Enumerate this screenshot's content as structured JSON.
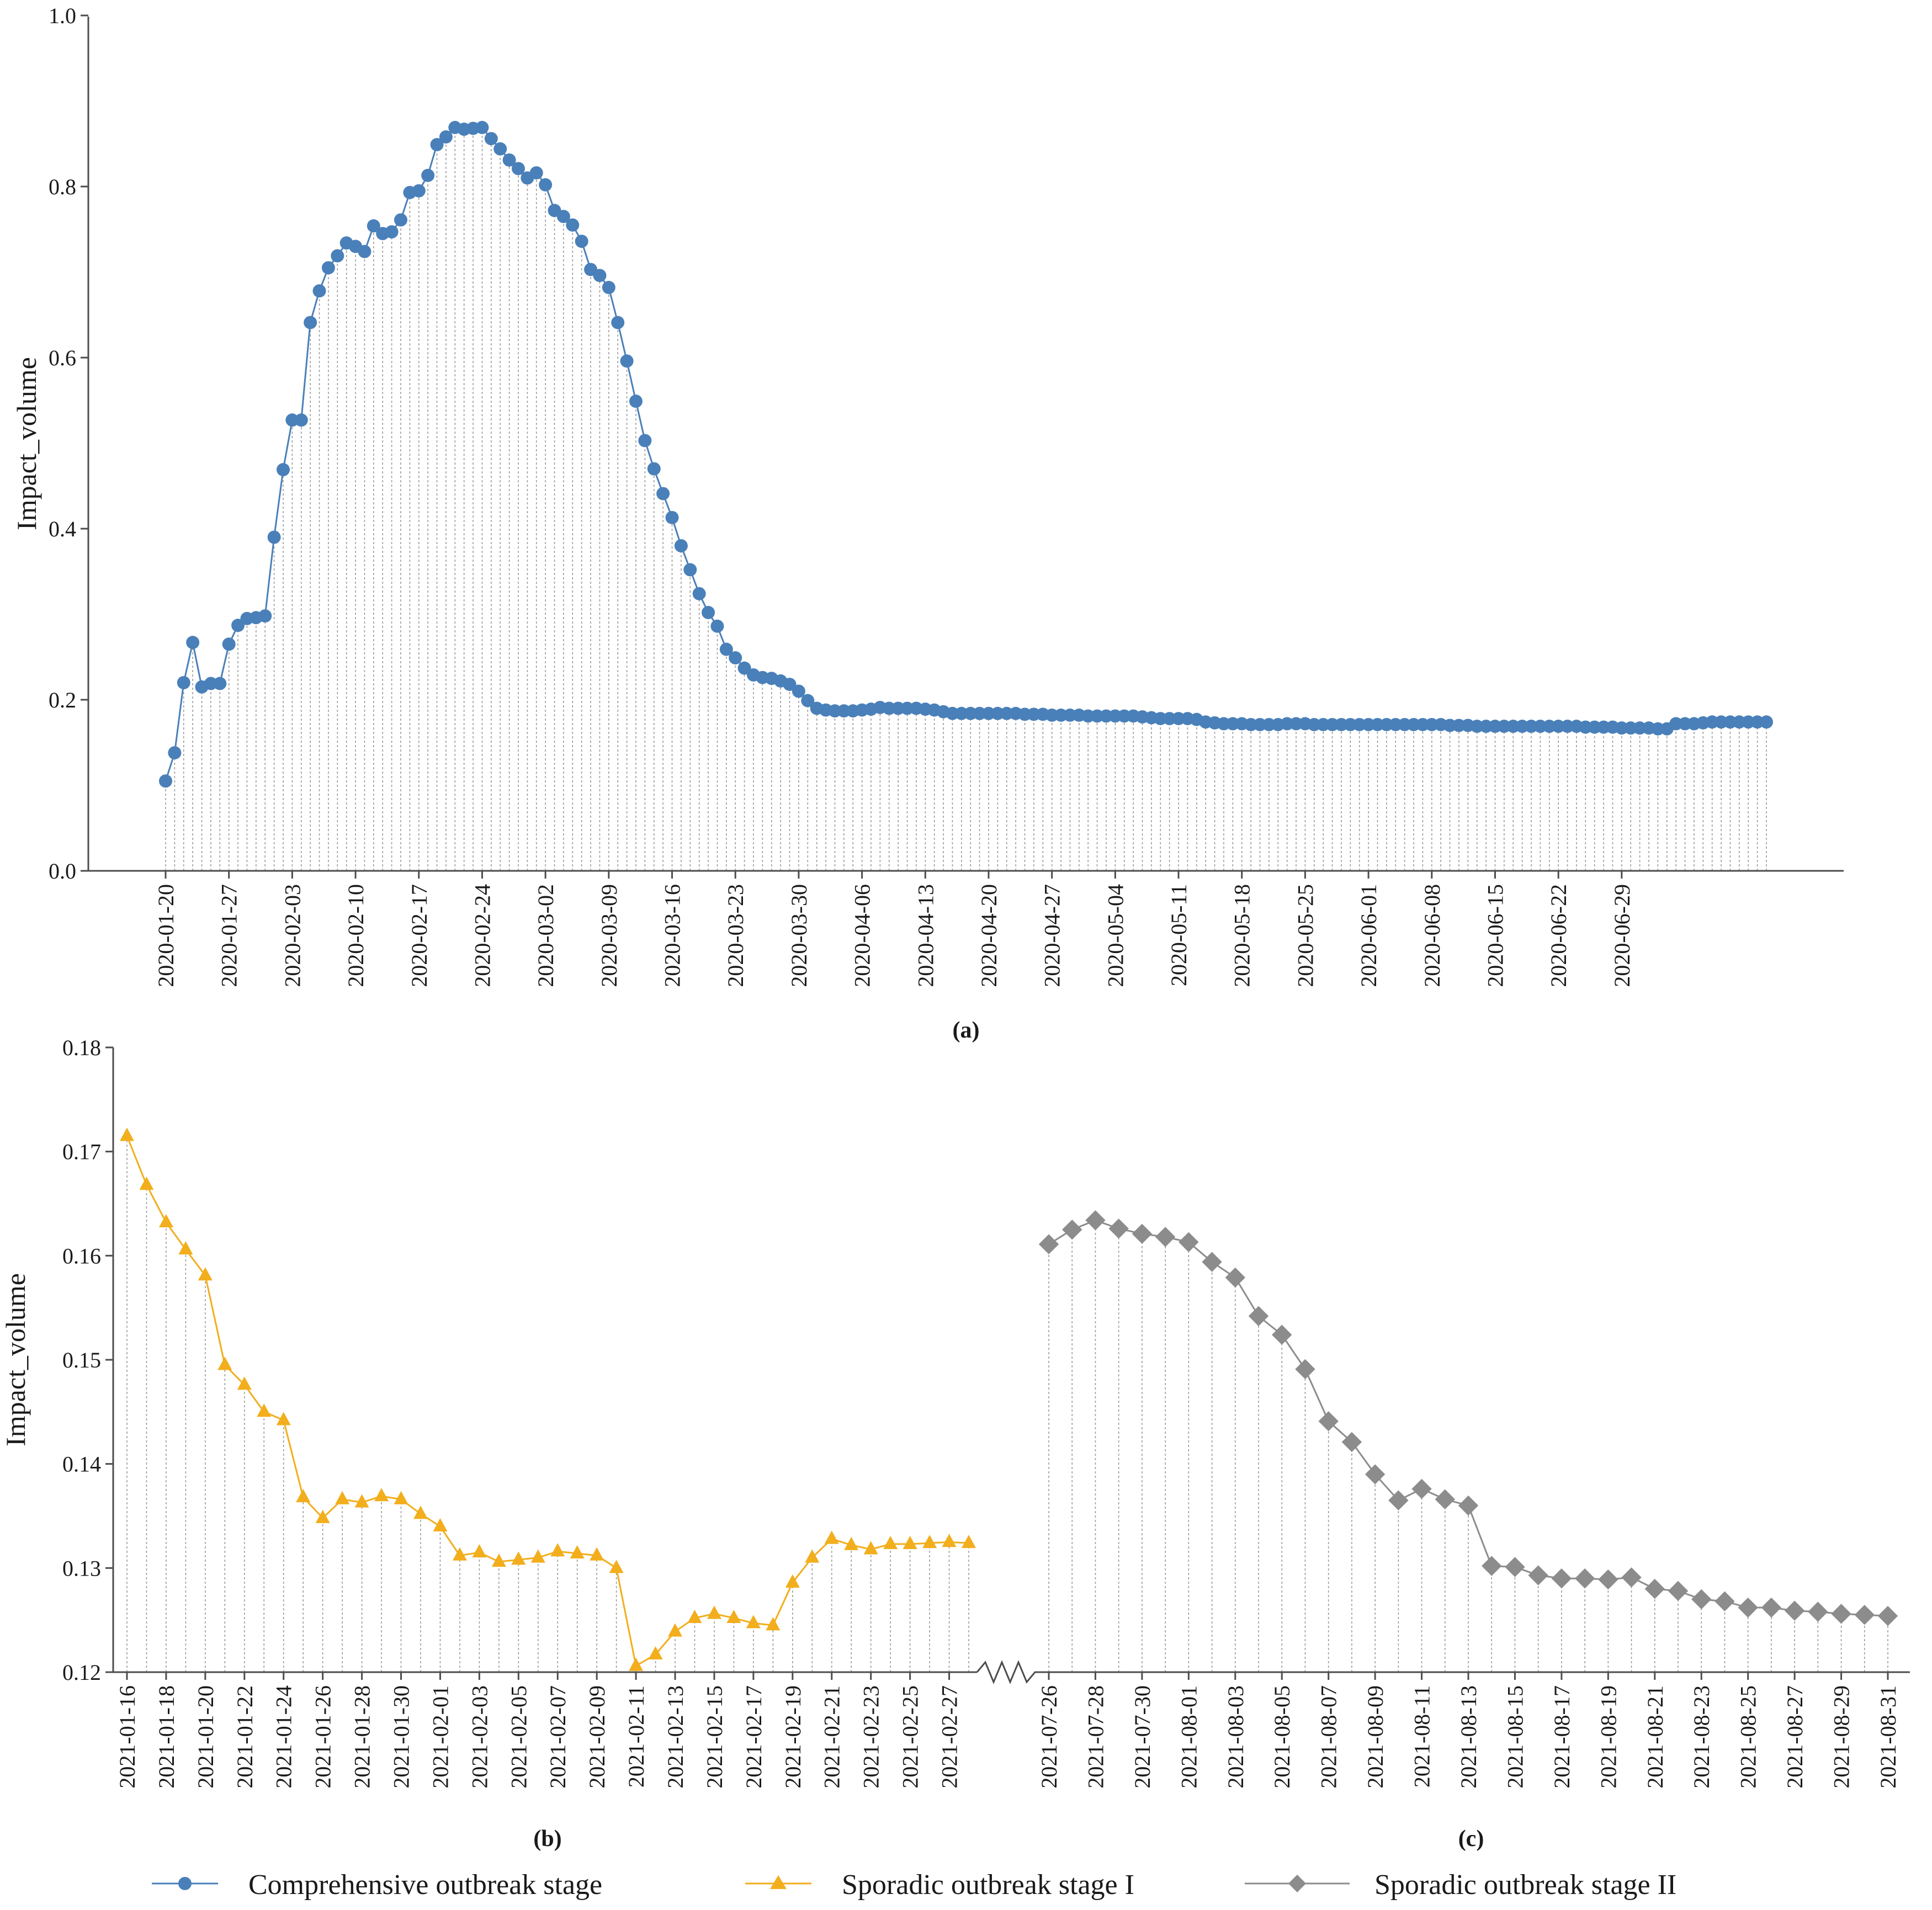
{
  "chart_data": [
    {
      "panel": "(a)",
      "type": "line",
      "ylabel": "Impact_volume",
      "ylim": [
        0.0,
        1.0
      ],
      "yticks": [
        "0.0",
        "0.2",
        "0.4",
        "0.6",
        "0.8",
        "1.0"
      ],
      "x_start": "2020-01-20",
      "x_end": "2020-06-30",
      "xtick_labels": [
        "2020-01-20",
        "2020-01-27",
        "2020-02-03",
        "2020-02-10",
        "2020-02-17",
        "2020-02-24",
        "2020-03-02",
        "2020-03-09",
        "2020-03-16",
        "2020-03-23",
        "2020-03-30",
        "2020-04-06",
        "2020-04-13",
        "2020-04-20",
        "2020-04-27",
        "2020-05-04",
        "2020-05-11",
        "2020-05-18",
        "2020-05-25",
        "2020-06-01",
        "2020-06-08",
        "2020-06-15",
        "2020-06-22",
        "2020-06-29"
      ],
      "series": [
        {
          "name": "Comprehensive outbreak stage",
          "color": "#4a80b9",
          "marker": "circle",
          "values": [
            0.105,
            0.138,
            0.22,
            0.267,
            0.215,
            0.219,
            0.219,
            0.265,
            0.287,
            0.295,
            0.296,
            0.298,
            0.39,
            0.469,
            0.527,
            0.527,
            0.641,
            0.678,
            0.705,
            0.719,
            0.734,
            0.73,
            0.724,
            0.754,
            0.745,
            0.747,
            0.761,
            0.793,
            0.795,
            0.813,
            0.849,
            0.858,
            0.869,
            0.867,
            0.868,
            0.869,
            0.856,
            0.844,
            0.831,
            0.821,
            0.81,
            0.816,
            0.802,
            0.772,
            0.765,
            0.755,
            0.736,
            0.703,
            0.696,
            0.682,
            0.641,
            0.596,
            0.549,
            0.503,
            0.47,
            0.441,
            0.413,
            0.38,
            0.352,
            0.324,
            0.302,
            0.286,
            0.259,
            0.249,
            0.237,
            0.229,
            0.226,
            0.225,
            0.222,
            0.218,
            0.21,
            0.199,
            0.19,
            0.188,
            0.187,
            0.187,
            0.187,
            0.188,
            0.189,
            0.191,
            0.19,
            0.19,
            0.19,
            0.19,
            0.189,
            0.188,
            0.186,
            0.184,
            0.184,
            0.184,
            0.184,
            0.184,
            0.184,
            0.184,
            0.184,
            0.183,
            0.183,
            0.183,
            0.182,
            0.182,
            0.182,
            0.182,
            0.181,
            0.181,
            0.181,
            0.181,
            0.181,
            0.181,
            0.18,
            0.179,
            0.178,
            0.178,
            0.178,
            0.178,
            0.177,
            0.174,
            0.173,
            0.172,
            0.172,
            0.172,
            0.171,
            0.171,
            0.171,
            0.171,
            0.172,
            0.172,
            0.172,
            0.171,
            0.171,
            0.171,
            0.171,
            0.171,
            0.171,
            0.171,
            0.171,
            0.171,
            0.171,
            0.171,
            0.171,
            0.171,
            0.171,
            0.171,
            0.17,
            0.17,
            0.17,
            0.169,
            0.169,
            0.169,
            0.169,
            0.169,
            0.169,
            0.169,
            0.169,
            0.169,
            0.169,
            0.169,
            0.169,
            0.168,
            0.168,
            0.168,
            0.168,
            0.167,
            0.167,
            0.167,
            0.167,
            0.166,
            0.166,
            0.172,
            0.172,
            0.172,
            0.173,
            0.174,
            0.174,
            0.174,
            0.174,
            0.174,
            0.174,
            0.174
          ]
        }
      ]
    },
    {
      "panel": "(b)",
      "type": "line",
      "ylabel": "Impact_volume",
      "ylim": [
        0.12,
        0.18
      ],
      "yticks": [
        "0.12",
        "0.13",
        "0.14",
        "0.15",
        "0.16",
        "0.17",
        "0.18"
      ],
      "x_start": "2021-01-16",
      "x_end": "2021-02-28",
      "xtick_labels": [
        "2021-01-16",
        "2021-01-18",
        "2021-01-20",
        "2021-01-22",
        "2021-01-24",
        "2021-01-26",
        "2021-01-28",
        "2021-01-30",
        "2021-02-01",
        "2021-02-03",
        "2021-02-05",
        "2021-02-07",
        "2021-02-09",
        "2021-02-11",
        "2021-02-13",
        "2021-02-15",
        "2021-02-17",
        "2021-02-19",
        "2021-02-21",
        "2021-02-23",
        "2021-02-25",
        "2021-02-27"
      ],
      "series": [
        {
          "name": "Sporadic outbreak stage I",
          "color": "#f2ae1c",
          "marker": "triangle",
          "values": [
            0.1715,
            0.1668,
            0.1632,
            0.1606,
            0.1581,
            0.1495,
            0.1476,
            0.145,
            0.1442,
            0.1368,
            0.1348,
            0.1366,
            0.1363,
            0.1369,
            0.1366,
            0.1352,
            0.134,
            0.1312,
            0.1315,
            0.1306,
            0.1308,
            0.131,
            0.1316,
            0.1314,
            0.1312,
            0.13,
            0.1206,
            0.1217,
            0.1239,
            0.1252,
            0.1256,
            0.1252,
            0.1247,
            0.1245,
            0.1286,
            0.131,
            0.1328,
            0.1322,
            0.1318,
            0.1323,
            0.1323,
            0.1324,
            0.1325,
            0.1324
          ]
        }
      ]
    },
    {
      "panel": "(c)",
      "type": "line",
      "ylim": [
        0.12,
        0.18
      ],
      "x_start": "2021-07-26",
      "x_end": "2021-08-31",
      "xtick_labels": [
        "2021-07-26",
        "2021-07-28",
        "2021-07-30",
        "2021-08-01",
        "2021-08-03",
        "2021-08-05",
        "2021-08-07",
        "2021-08-09",
        "2021-08-11",
        "2021-08-13",
        "2021-08-15",
        "2021-08-17",
        "2021-08-19",
        "2021-08-21",
        "2021-08-23",
        "2021-08-25",
        "2021-08-27",
        "2021-08-29",
        "2021-08-31"
      ],
      "series": [
        {
          "name": "Sporadic outbreak stage II",
          "color": "#8c8c8c",
          "marker": "diamond",
          "values": [
            0.1611,
            0.1625,
            0.1634,
            0.1626,
            0.1621,
            0.1618,
            0.1613,
            0.1594,
            0.1579,
            0.1542,
            0.1524,
            0.1491,
            0.1441,
            0.1421,
            0.139,
            0.1365,
            0.1376,
            0.1366,
            0.136,
            0.1302,
            0.1301,
            0.1293,
            0.129,
            0.129,
            0.1289,
            0.1291,
            0.128,
            0.1278,
            0.127,
            0.1268,
            0.1262,
            0.1262,
            0.1259,
            0.1258,
            0.1256,
            0.1255,
            0.1254
          ]
        }
      ]
    }
  ],
  "legend": [
    {
      "label": "Comprehensive outbreak stage",
      "color": "#4a80b9",
      "marker": "circle"
    },
    {
      "label": "Sporadic outbreak stage I",
      "color": "#f2ae1c",
      "marker": "triangle"
    },
    {
      "label": "Sporadic outbreak stage II",
      "color": "#8c8c8c",
      "marker": "diamond"
    }
  ]
}
